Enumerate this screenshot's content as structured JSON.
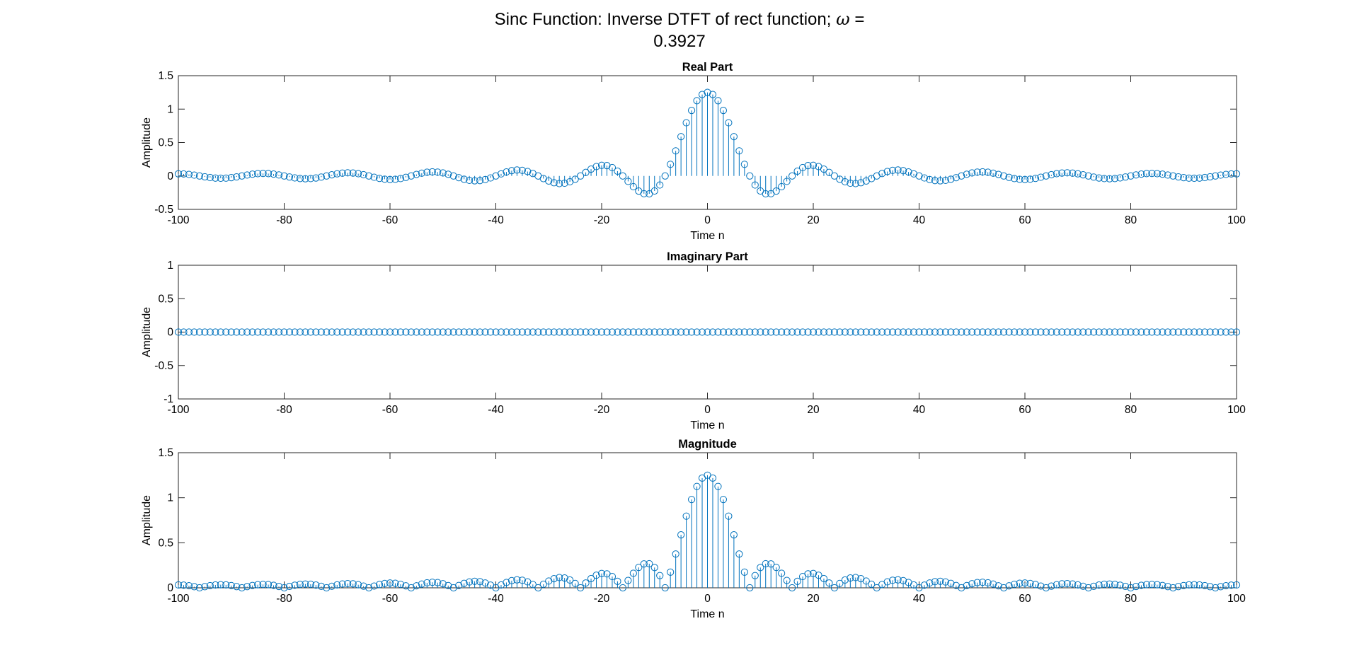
{
  "figure_title": {
    "prefix": "Sinc Function: Inverse DTFT of rect function; ",
    "symbol": "ω",
    "equals": " =",
    "value": "0.3927"
  },
  "colors": {
    "stem": "#0072BD",
    "axis": "#262626",
    "background": "#ffffff"
  },
  "chart_data": [
    {
      "type": "stem",
      "title": "Real Part",
      "xlabel": "Time n",
      "ylabel": "Amplitude",
      "xlim": [
        -100,
        100
      ],
      "ylim": [
        -0.5,
        1.5
      ],
      "xticks": [
        "-100",
        "-80",
        "-60",
        "-40",
        "-20",
        "0",
        "20",
        "40",
        "60",
        "80",
        "100"
      ],
      "yticks": [
        "-0.5",
        "0",
        "0.5",
        "1",
        "1.5"
      ],
      "x_range": [
        -100,
        100
      ],
      "series": [
        {
          "function": "sin(0.3927·n)/(π·n) scaled; peak 1.25 at n = 0",
          "marker": "o"
        }
      ]
    },
    {
      "type": "stem",
      "title": "Imaginary Part",
      "xlabel": "Time n",
      "ylabel": "Amplitude",
      "xlim": [
        -100,
        100
      ],
      "ylim": [
        -1,
        1
      ],
      "xticks": [
        "-100",
        "-80",
        "-60",
        "-40",
        "-20",
        "0",
        "20",
        "40",
        "60",
        "80",
        "100"
      ],
      "yticks": [
        "-1",
        "-0.5",
        "0",
        "0.5",
        "1"
      ],
      "x_range": [
        -100,
        100
      ],
      "series": [
        {
          "function": "0 for all n",
          "marker": "o"
        }
      ]
    },
    {
      "type": "stem",
      "title": "Magnitude",
      "xlabel": "Time n",
      "ylabel": "Amplitude",
      "xlim": [
        -100,
        100
      ],
      "ylim": [
        0,
        1.5
      ],
      "xticks": [
        "-100",
        "-80",
        "-60",
        "-40",
        "-20",
        "0",
        "20",
        "40",
        "60",
        "80",
        "100"
      ],
      "yticks": [
        "0",
        "0.5",
        "1",
        "1.5"
      ],
      "x_range": [
        -100,
        100
      ],
      "series": [
        {
          "function": "|real part|; peak 1.25 at n = 0",
          "marker": "o"
        }
      ]
    }
  ]
}
